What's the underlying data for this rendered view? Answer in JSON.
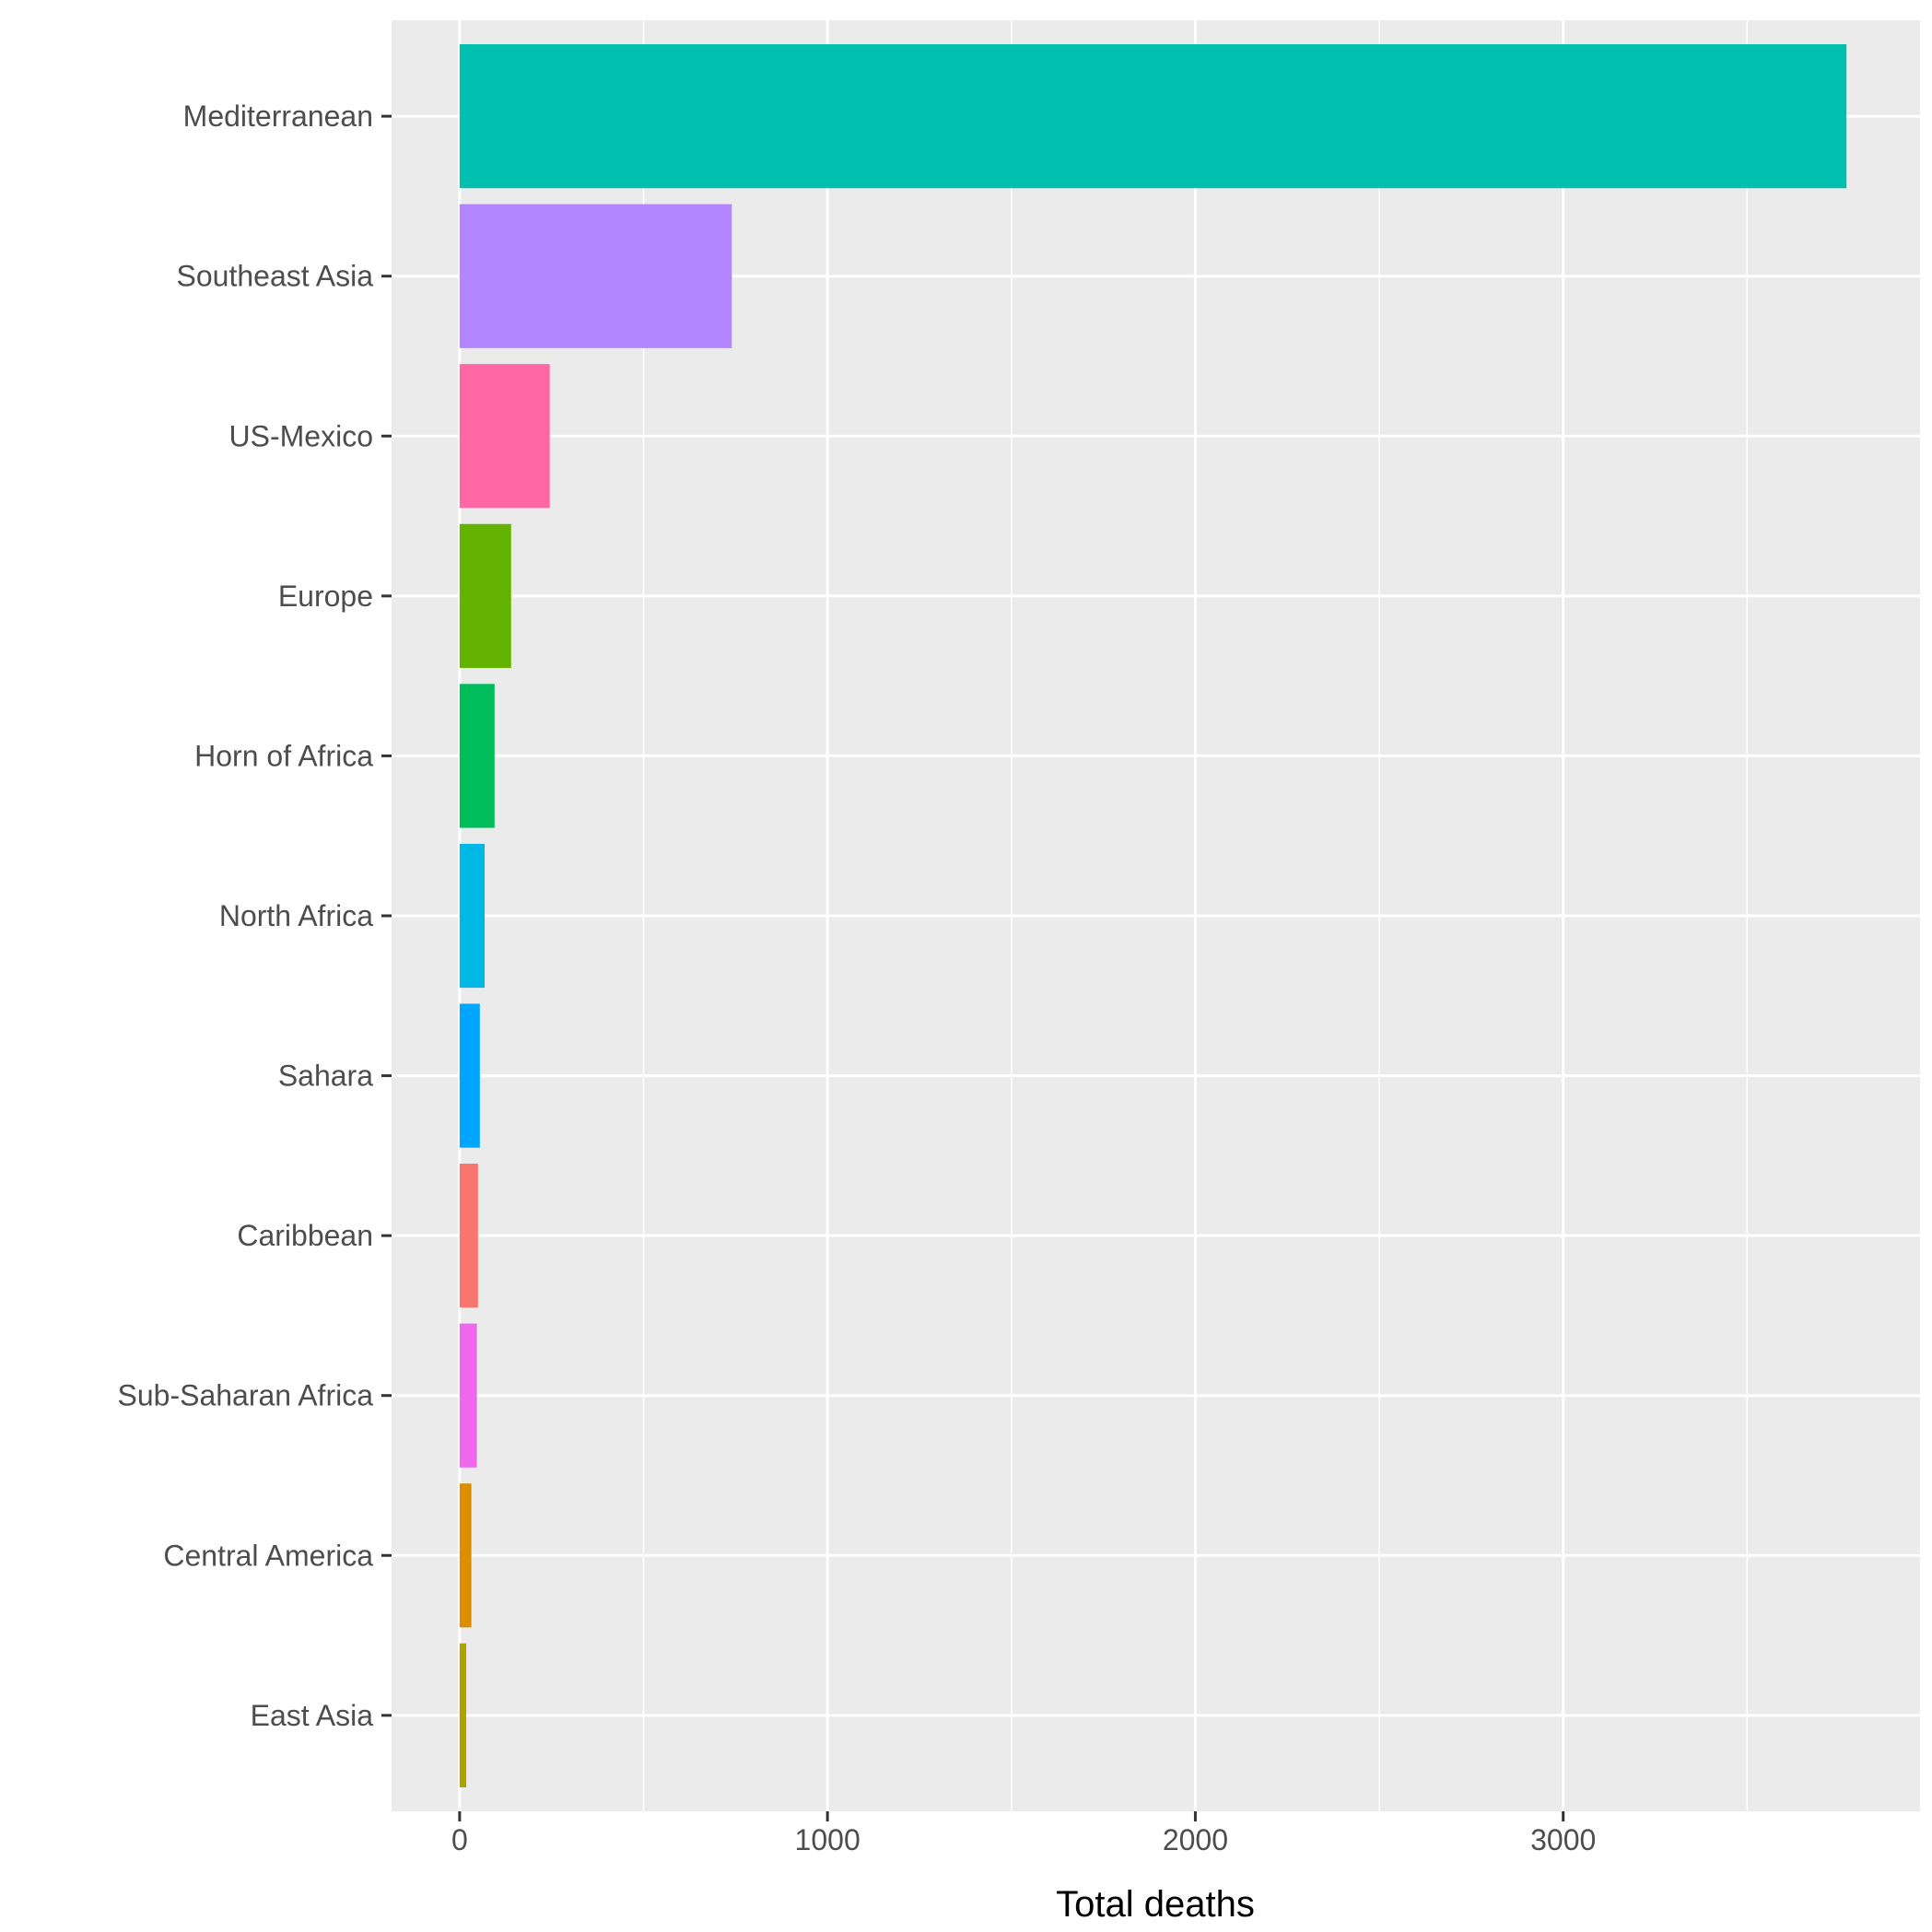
{
  "chart_data": {
    "type": "bar",
    "orientation": "horizontal",
    "title": "",
    "xlabel": "Total deaths",
    "ylabel": "",
    "xlim": [
      -185,
      3970
    ],
    "x_ticks": [
      0,
      1000,
      2000,
      3000
    ],
    "x_minor_ticks": [
      500,
      1500,
      2500,
      3500
    ],
    "grid": true,
    "legend": "none",
    "categories": [
      "Mediterranean",
      "Southeast Asia",
      "US-Mexico",
      "Europe",
      "Horn of Africa",
      "North Africa",
      "Sahara",
      "Caribbean",
      "Sub-Saharan Africa",
      "Central America",
      "East Asia"
    ],
    "values": [
      3770,
      740,
      245,
      140,
      95,
      68,
      55,
      50,
      47,
      32,
      18
    ],
    "colors": [
      "#00C0AF",
      "#B385FF",
      "#FF67A4",
      "#64B200",
      "#00BD5C",
      "#00B8E5",
      "#00A5FF",
      "#F8766D",
      "#EF67EB",
      "#DB8E00",
      "#AEA200"
    ]
  }
}
